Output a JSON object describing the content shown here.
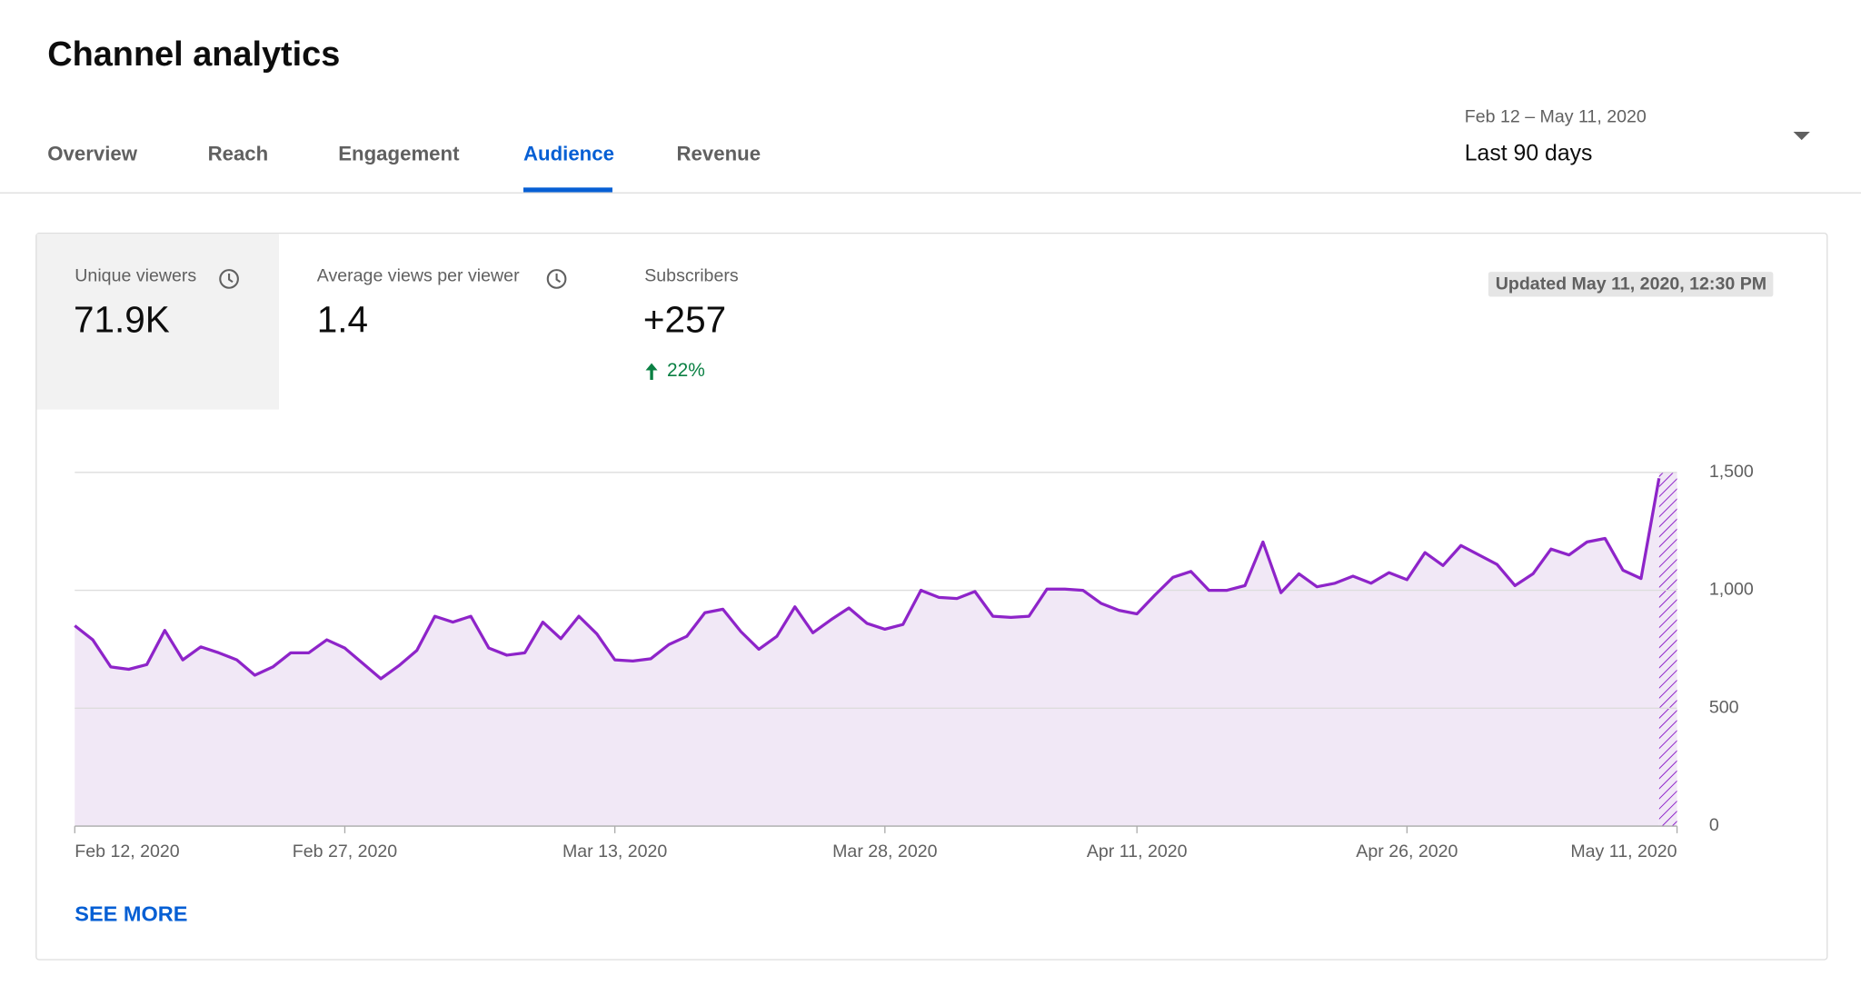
{
  "header": {
    "title": "Channel analytics"
  },
  "tabs": [
    "Overview",
    "Reach",
    "Engagement",
    "Audience",
    "Revenue"
  ],
  "date_range": {
    "dates": "Feb 12 – May 11, 2020",
    "label": "Last 90 days"
  },
  "metrics": [
    {
      "label": "Unique viewers",
      "value": "71.9K"
    },
    {
      "label": "Average views per viewer",
      "value": "1.4"
    },
    {
      "label": "Subscribers",
      "value": "+257",
      "change": "22%"
    }
  ],
  "updated": "Updated May 11, 2020, 12:30 PM",
  "chart_data": {
    "type": "line",
    "categories": [
      "Feb 12, 2020",
      null,
      null,
      null,
      null,
      null,
      null,
      null,
      null,
      null,
      null,
      null,
      null,
      null,
      null,
      "Feb 27, 2020",
      null,
      null,
      null,
      null,
      null,
      null,
      null,
      null,
      null,
      null,
      null,
      null,
      null,
      null,
      "Mar 13, 2020",
      null,
      null,
      null,
      null,
      null,
      null,
      null,
      null,
      null,
      null,
      null,
      null,
      null,
      null,
      "Mar 28, 2020",
      null,
      null,
      null,
      null,
      null,
      null,
      null,
      null,
      null,
      null,
      null,
      null,
      null,
      "Apr 11, 2020",
      null,
      null,
      null,
      null,
      null,
      null,
      null,
      null,
      null,
      null,
      null,
      null,
      null,
      null,
      "Apr 26, 2020",
      null,
      null,
      null,
      null,
      null,
      null,
      null,
      null,
      null,
      null,
      null,
      null,
      null,
      null,
      "May 11, 2020"
    ],
    "values": [
      850,
      790,
      675,
      665,
      685,
      830,
      705,
      760,
      735,
      705,
      640,
      675,
      735,
      735,
      790,
      755,
      690,
      625,
      680,
      745,
      890,
      865,
      890,
      755,
      725,
      735,
      865,
      795,
      890,
      815,
      705,
      700,
      710,
      770,
      805,
      905,
      920,
      825,
      750,
      805,
      930,
      820,
      875,
      925,
      860,
      835,
      855,
      1000,
      970,
      965,
      995,
      890,
      885,
      890,
      1005,
      1005,
      1000,
      945,
      915,
      900,
      980,
      1055,
      1080,
      1000,
      1000,
      1020,
      1205,
      990,
      1070,
      1015,
      1030,
      1060,
      1030,
      1075,
      1045,
      1160,
      1105,
      1190,
      1150,
      1110,
      1020,
      1070,
      1175,
      1150,
      1205,
      1220,
      1085,
      1050,
      1475,
      null
    ],
    "color": "#8e24c9",
    "area": true,
    "ylim": [
      0,
      1500
    ],
    "yticks": [
      0,
      500,
      {
        "value": 1000,
        "label": "1,000"
      },
      {
        "value": 1500,
        "label": "1,500"
      }
    ],
    "grid": true
  },
  "see_more": "SEE MORE"
}
